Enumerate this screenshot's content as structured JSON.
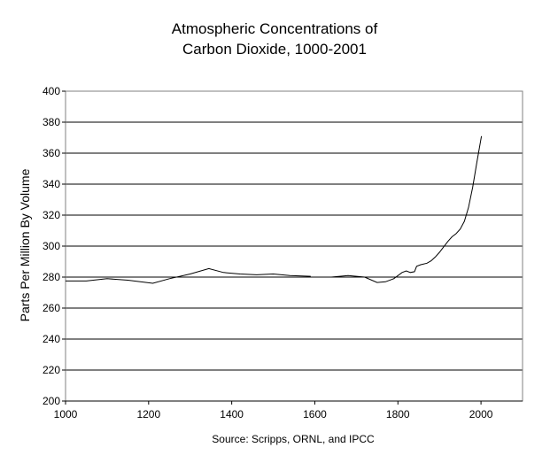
{
  "chart_data": {
    "type": "line",
    "title_lines": [
      "Atmospheric Concentrations of",
      "Carbon Dioxide, 1000-2001"
    ],
    "xlabel": "",
    "ylabel": "Parts Per Million By Volume",
    "source": "Source: Scripps, ORNL, and IPCC",
    "xlim": [
      1000,
      2100
    ],
    "ylim": [
      200,
      400
    ],
    "x_ticks": [
      1000,
      1200,
      1400,
      1600,
      1800,
      2000
    ],
    "y_ticks": [
      200,
      220,
      240,
      260,
      280,
      300,
      320,
      340,
      360,
      380,
      400
    ],
    "grid": "horizontal",
    "legend": "none",
    "colors": {
      "line": "#000000",
      "grid": "#000000",
      "frame": "#808080"
    },
    "series": [
      {
        "segments": [
          [
            [
              1000,
              277.5
            ],
            [
              1050,
              277.5
            ],
            [
              1100,
              279
            ],
            [
              1150,
              278
            ],
            [
              1210,
              276
            ],
            [
              1250,
              279
            ],
            [
              1300,
              282
            ],
            [
              1345,
              285.5
            ],
            [
              1380,
              283
            ],
            [
              1420,
              282
            ],
            [
              1460,
              281.5
            ],
            [
              1500,
              282
            ],
            [
              1540,
              281
            ],
            [
              1590,
              280.5
            ]
          ],
          [
            [
              1640,
              280
            ],
            [
              1680,
              281
            ],
            [
              1720,
              280
            ],
            [
              1750,
              276.5
            ],
            [
              1770,
              277
            ],
            [
              1790,
              279
            ],
            [
              1810,
              283
            ],
            [
              1820,
              284
            ],
            [
              1830,
              283
            ],
            [
              1840,
              283.5
            ],
            [
              1845,
              287
            ],
            [
              1855,
              288
            ],
            [
              1870,
              289
            ],
            [
              1880,
              290.5
            ],
            [
              1890,
              293
            ],
            [
              1900,
              296
            ],
            [
              1910,
              299.5
            ],
            [
              1920,
              303
            ],
            [
              1930,
              306
            ],
            [
              1940,
              308
            ],
            [
              1950,
              311
            ],
            [
              1960,
              316
            ],
            [
              1970,
              325
            ],
            [
              1980,
              338
            ],
            [
              1990,
              354
            ],
            [
              2001,
              371
            ]
          ]
        ]
      }
    ]
  }
}
